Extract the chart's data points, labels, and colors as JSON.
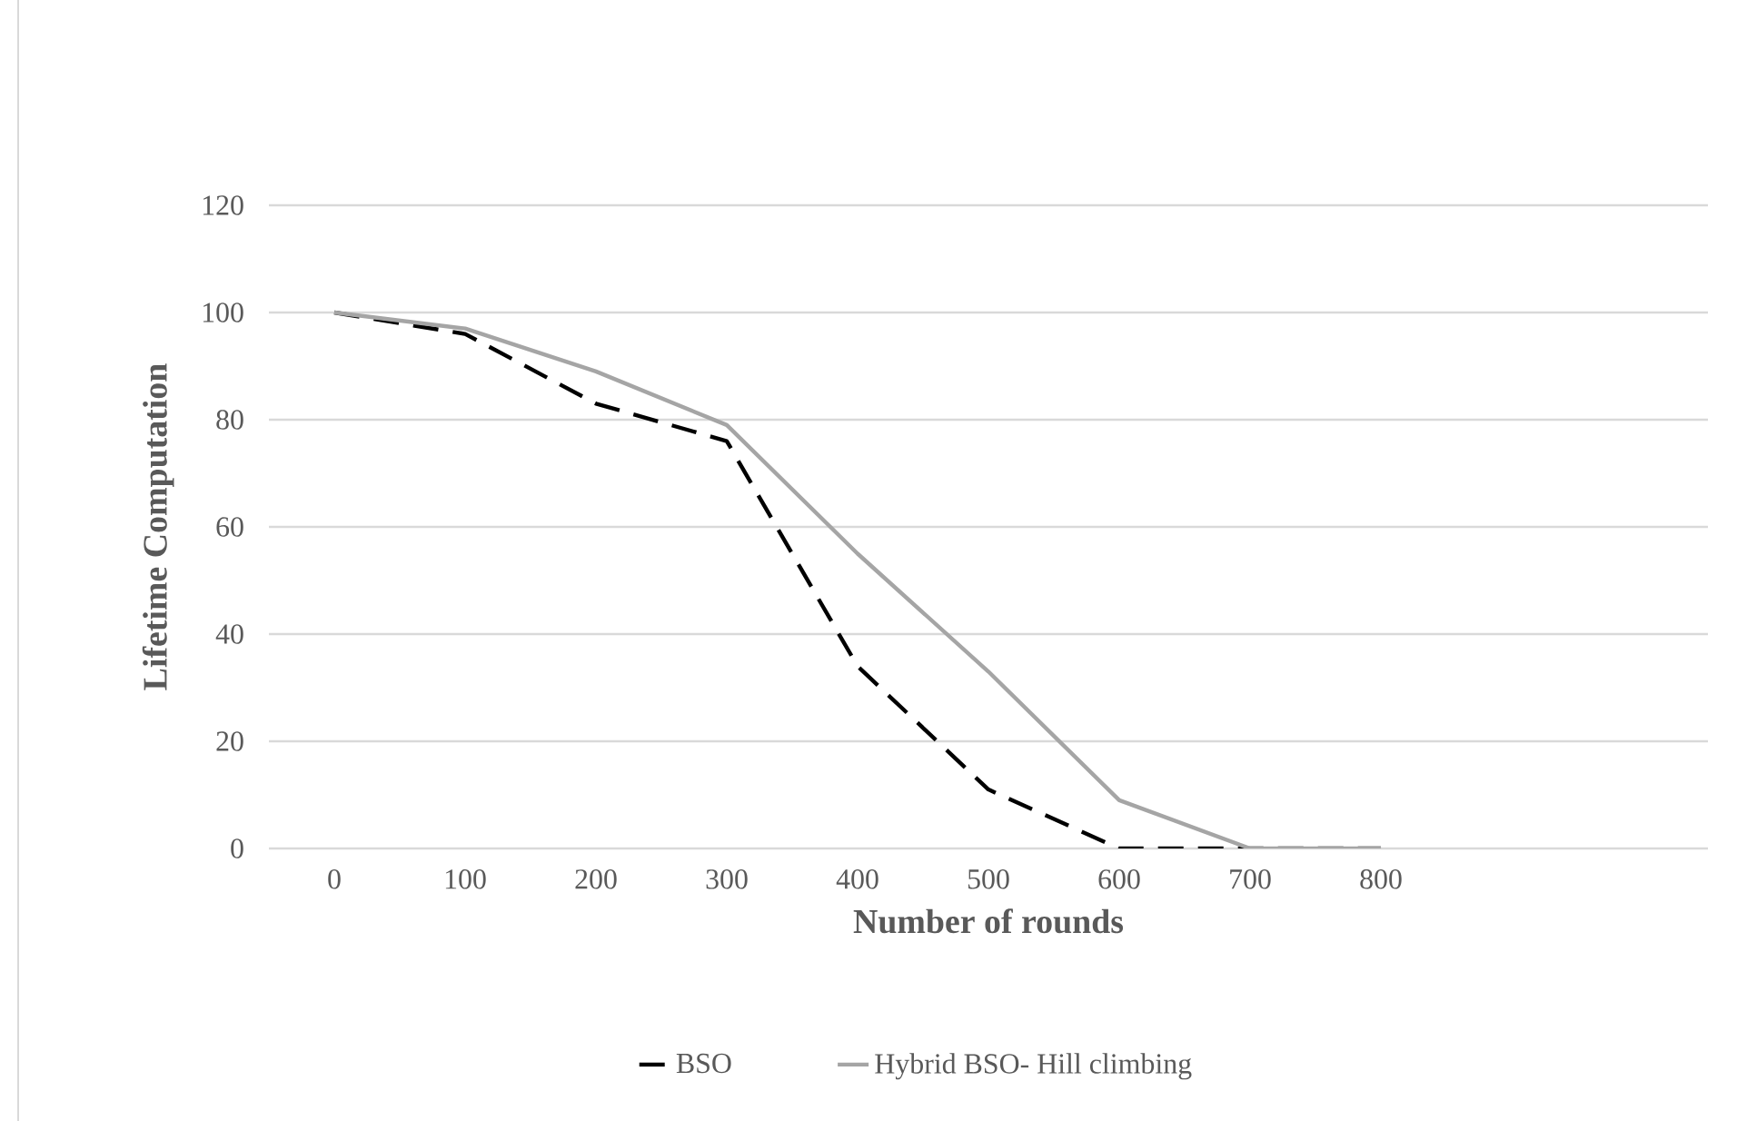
{
  "chart_data": {
    "type": "line",
    "xlabel": "Number of rounds",
    "ylabel": "Lifetime Computation",
    "x": [
      0,
      100,
      200,
      300,
      400,
      500,
      600,
      700,
      800
    ],
    "series": [
      {
        "name": "BSO",
        "color": "#000000",
        "line_style": "dashed",
        "values": [
          100,
          96,
          83,
          76,
          34,
          11,
          0,
          0,
          0
        ]
      },
      {
        "name": "Hybrid BSO- Hill climbing",
        "color": "#a5a5a5",
        "line_style": "solid",
        "values": [
          100,
          97,
          89,
          79,
          55,
          33,
          9,
          0,
          0
        ]
      }
    ],
    "xlim": [
      -50,
      1050
    ],
    "xticks": [
      0,
      100,
      200,
      300,
      400,
      500,
      600,
      700,
      800
    ],
    "ylim": [
      0,
      120
    ],
    "yticks": [
      0,
      20,
      40,
      60,
      80,
      100,
      120
    ],
    "grid": "y",
    "legend": "bottom"
  }
}
